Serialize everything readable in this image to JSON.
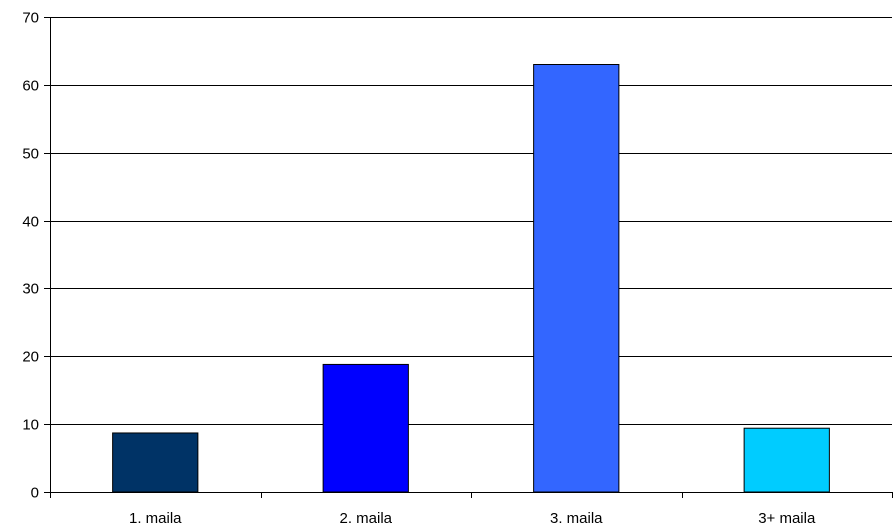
{
  "chart_data": {
    "type": "bar",
    "title": "",
    "xlabel": "",
    "ylabel": "",
    "categories": [
      "1. maila",
      "2. maila",
      "3. maila",
      "3+ maila"
    ],
    "values": [
      8.7,
      18.8,
      63.0,
      9.4
    ],
    "colors": [
      "#003366",
      "#0000ff",
      "#3366ff",
      "#00ccff"
    ],
    "ylim": [
      0,
      70
    ],
    "yticks": [
      0,
      10,
      20,
      30,
      40,
      50,
      60,
      70
    ],
    "grid": true,
    "legend": "none"
  }
}
